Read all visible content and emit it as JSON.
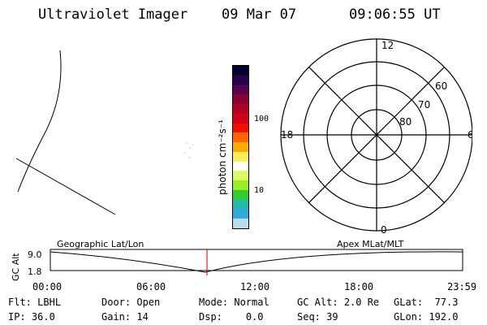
{
  "header": {
    "title": "Ultraviolet Imager",
    "date": "09 Mar 07",
    "time": "09:06:55 UT"
  },
  "colorbar": {
    "unit_label": "photon cm⁻²s⁻¹",
    "tick_labels": [
      "100",
      "10"
    ],
    "colors": [
      "#000033",
      "#2a004f",
      "#5a0050",
      "#8a0033",
      "#b00022",
      "#d4001a",
      "#ee1100",
      "#ff6600",
      "#ffaa00",
      "#ffee55",
      "#ffffff",
      "#ddff66",
      "#99ee22",
      "#33cc33",
      "#22bbaa",
      "#33aadd",
      "#bbddee"
    ]
  },
  "polar_plot": {
    "mlt_labels": {
      "top": "12",
      "bottom": "0",
      "left": "18",
      "right": "6"
    },
    "lat_labels": [
      "60",
      "70",
      "80"
    ]
  },
  "altitude_panel": {
    "y_axis_label": "GC Alt",
    "y_ticks": [
      "9.0",
      "1.8"
    ],
    "left_title": "Geographic Lat/Lon",
    "right_title": "Apex MLat/MLT",
    "x_ticks": [
      "00:00",
      "06:00",
      "12:00",
      "18:00",
      "23:59"
    ],
    "marker_color": "#cc0000",
    "marker_time_fraction": 0.3799
  },
  "status": {
    "row1": [
      {
        "label": "Flt:",
        "value": "LBHL"
      },
      {
        "label": "Door:",
        "value": "Open"
      },
      {
        "label": "Mode:",
        "value": "Normal"
      },
      {
        "label": "GC Alt:",
        "value": "2.0 Re"
      },
      {
        "label": "GLat:",
        "value": "77.3"
      }
    ],
    "row2": [
      {
        "label": "IP:",
        "value": "36.0"
      },
      {
        "label": "Gain:",
        "value": "14"
      },
      {
        "label": "Dsp:",
        "value": "0.0"
      },
      {
        "label": "Seq:",
        "value": "39"
      },
      {
        "label": "GLon:",
        "value": "192.0"
      }
    ]
  }
}
